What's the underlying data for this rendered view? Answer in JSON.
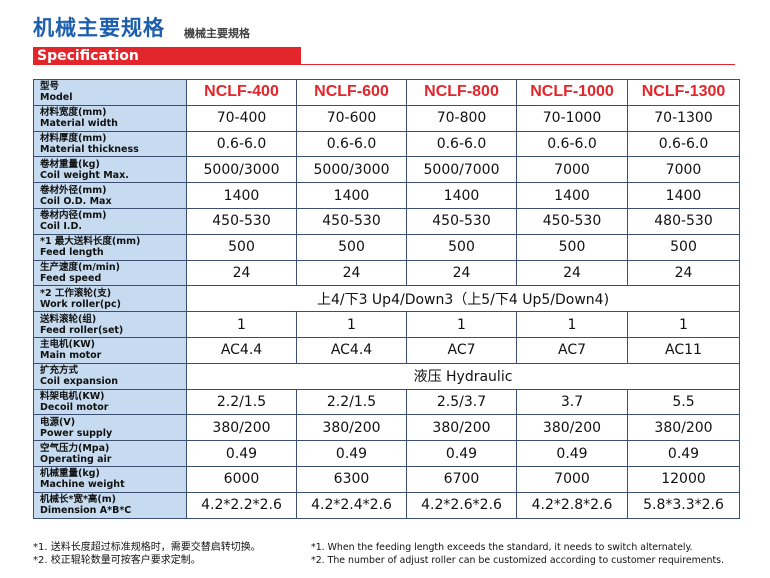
{
  "header": {
    "title_cn": "机械主要规格",
    "title_sub": "機械主要規格",
    "spec_label": "Specification"
  },
  "colors": {
    "accent_red": "#e2262b",
    "title_blue": "#1d5fae",
    "label_bg": "#c6dbef"
  },
  "table": {
    "model_label_cn": "型号",
    "model_label_en": "Model",
    "models": [
      "NCLF-400",
      "NCLF-600",
      "NCLF-800",
      "NCLF-1000",
      "NCLF-1300"
    ],
    "rows": [
      {
        "cn": "材料宽度(mm)",
        "en": "Material width",
        "values": [
          "70-400",
          "70-600",
          "70-800",
          "70-1000",
          "70-1300"
        ]
      },
      {
        "cn": "材料厚度(mm)",
        "en": "Material thickness",
        "values": [
          "0.6-6.0",
          "0.6-6.0",
          "0.6-6.0",
          "0.6-6.0",
          "0.6-6.0"
        ]
      },
      {
        "cn": "卷材重量(kg)",
        "en": "Coil weight Max.",
        "values": [
          "5000/3000",
          "5000/3000",
          "5000/7000",
          "7000",
          "7000"
        ]
      },
      {
        "cn": "卷材外径(mm)",
        "en": "Coil O.D. Max",
        "values": [
          "1400",
          "1400",
          "1400",
          "1400",
          "1400"
        ]
      },
      {
        "cn": "卷材内径(mm)",
        "en": "Coil I.D.",
        "values": [
          "450-530",
          "450-530",
          "450-530",
          "450-530",
          "480-530"
        ]
      },
      {
        "cn": "*1 最大送料长度(mm)",
        "en": "Feed length",
        "values": [
          "500",
          "500",
          "500",
          "500",
          "500"
        ]
      },
      {
        "cn": "生产速度(m/min)",
        "en": "Feed speed",
        "values": [
          "24",
          "24",
          "24",
          "24",
          "24"
        ]
      },
      {
        "cn": "*2 工作滚轮(支)",
        "en": "Work roller(pc)",
        "merged": "上4/下3 Up4/Down3（上5/下4 Up5/Down4)"
      },
      {
        "cn": "送料滚轮(组)",
        "en": "Feed roller(set)",
        "values": [
          "1",
          "1",
          "1",
          "1",
          "1"
        ]
      },
      {
        "cn": "主电机(KW)",
        "en": "Main motor",
        "values": [
          "AC4.4",
          "AC4.4",
          "AC7",
          "AC7",
          "AC11"
        ]
      },
      {
        "cn": "扩充方式",
        "en": "Coil expansion",
        "merged": "液压 Hydraulic"
      },
      {
        "cn": "料架电机(KW)",
        "en": "Decoil motor",
        "values": [
          "2.2/1.5",
          "2.2/1.5",
          "2.5/3.7",
          "3.7",
          "5.5"
        ]
      },
      {
        "cn": "电源(V)",
        "en": "Power supply",
        "values": [
          "380/200",
          "380/200",
          "380/200",
          "380/200",
          "380/200"
        ]
      },
      {
        "cn": "空气压力(Mpa)",
        "en": "Operating air",
        "values": [
          "0.49",
          "0.49",
          "0.49",
          "0.49",
          "0.49"
        ]
      },
      {
        "cn": "机械重量(kg)",
        "en": "Machine weight",
        "values": [
          "6000",
          "6300",
          "6700",
          "7000",
          "12000"
        ]
      },
      {
        "cn": "机械长*宽*高(m)",
        "en": "Dimension A*B*C",
        "values": [
          "4.2*2.2*2.6",
          "4.2*2.4*2.6",
          "4.2*2.6*2.6",
          "4.2*2.8*2.6",
          "5.8*3.3*2.6"
        ]
      }
    ]
  },
  "notes": {
    "cn": [
      "*1. 送料长度超过标准规格时，需要交替启转切换。",
      "*2. 校正辊轮数量可按客户要求定制。"
    ],
    "en": [
      "*1. When the feeding length exceeds the standard, it needs to switch alternately.",
      "*2. The number of adjust roller can be customized according to customer requirements."
    ]
  }
}
